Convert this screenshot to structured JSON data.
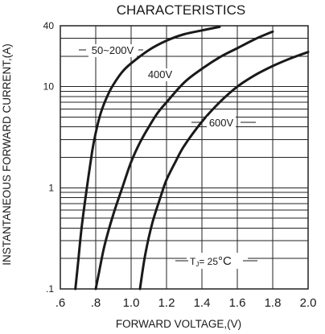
{
  "chart_data": {
    "type": "line",
    "title": "CHARACTERISTICS",
    "xlabel": "FORWARD VOLTAGE,(V)",
    "ylabel": "INSTANTANEOUS FORWARD CURRENT,(A)",
    "x_scale": "linear",
    "y_scale": "log",
    "xlim": [
      0.6,
      2.0
    ],
    "ylim": [
      0.1,
      40
    ],
    "x_ticks": [
      {
        "value": 0.6,
        "label": ".6"
      },
      {
        "value": 0.8,
        "label": ".8"
      },
      {
        "value": 1.0,
        "label": "1.0"
      },
      {
        "value": 1.2,
        "label": "1.2"
      },
      {
        "value": 1.4,
        "label": "1.4"
      },
      {
        "value": 1.6,
        "label": "1.6"
      },
      {
        "value": 1.8,
        "label": "1.8"
      },
      {
        "value": 2.0,
        "label": "2.0"
      }
    ],
    "y_ticks": [
      {
        "value": 0.1,
        "label": ".1"
      },
      {
        "value": 1,
        "label": "1"
      },
      {
        "value": 10,
        "label": "10"
      },
      {
        "value": 40,
        "label": "40"
      }
    ],
    "grid": true,
    "series": [
      {
        "name": "50~200V",
        "points": [
          [
            0.685,
            0.1
          ],
          [
            0.7,
            0.18
          ],
          [
            0.72,
            0.4
          ],
          [
            0.75,
            1.0
          ],
          [
            0.78,
            2.3
          ],
          [
            0.8,
            3.5
          ],
          [
            0.83,
            5.6
          ],
          [
            0.87,
            8.4
          ],
          [
            0.9,
            10.5
          ],
          [
            0.95,
            14
          ],
          [
            1.0,
            17
          ],
          [
            1.1,
            23
          ],
          [
            1.2,
            28.5
          ],
          [
            1.3,
            33
          ],
          [
            1.4,
            36
          ],
          [
            1.5,
            39
          ]
        ]
      },
      {
        "name": "400V",
        "points": [
          [
            0.8,
            0.1
          ],
          [
            0.82,
            0.15
          ],
          [
            0.85,
            0.27
          ],
          [
            0.9,
            0.55
          ],
          [
            0.95,
            1.0
          ],
          [
            1.0,
            1.8
          ],
          [
            1.05,
            2.8
          ],
          [
            1.1,
            4.0
          ],
          [
            1.15,
            5.5
          ],
          [
            1.2,
            7.0
          ],
          [
            1.3,
            11
          ],
          [
            1.4,
            15
          ],
          [
            1.5,
            19.5
          ],
          [
            1.6,
            24
          ],
          [
            1.7,
            29.5
          ],
          [
            1.8,
            35
          ]
        ]
      },
      {
        "name": "600V",
        "points": [
          [
            1.05,
            0.1
          ],
          [
            1.08,
            0.22
          ],
          [
            1.12,
            0.45
          ],
          [
            1.17,
            0.85
          ],
          [
            1.2,
            1.2
          ],
          [
            1.25,
            1.8
          ],
          [
            1.3,
            2.6
          ],
          [
            1.4,
            4.5
          ],
          [
            1.5,
            7.0
          ],
          [
            1.6,
            10
          ],
          [
            1.7,
            13
          ],
          [
            1.8,
            16
          ],
          [
            1.9,
            19
          ],
          [
            2.0,
            22
          ]
        ]
      }
    ],
    "annotations": {
      "series_labels": [
        {
          "text": "50~200V",
          "series": 0
        },
        {
          "text": "400V",
          "series": 1
        },
        {
          "text": "600V",
          "series": 2
        }
      ],
      "condition": {
        "prefix": "T",
        "subscript": "J",
        "eq": "= 25",
        "unit": "°C"
      }
    }
  }
}
